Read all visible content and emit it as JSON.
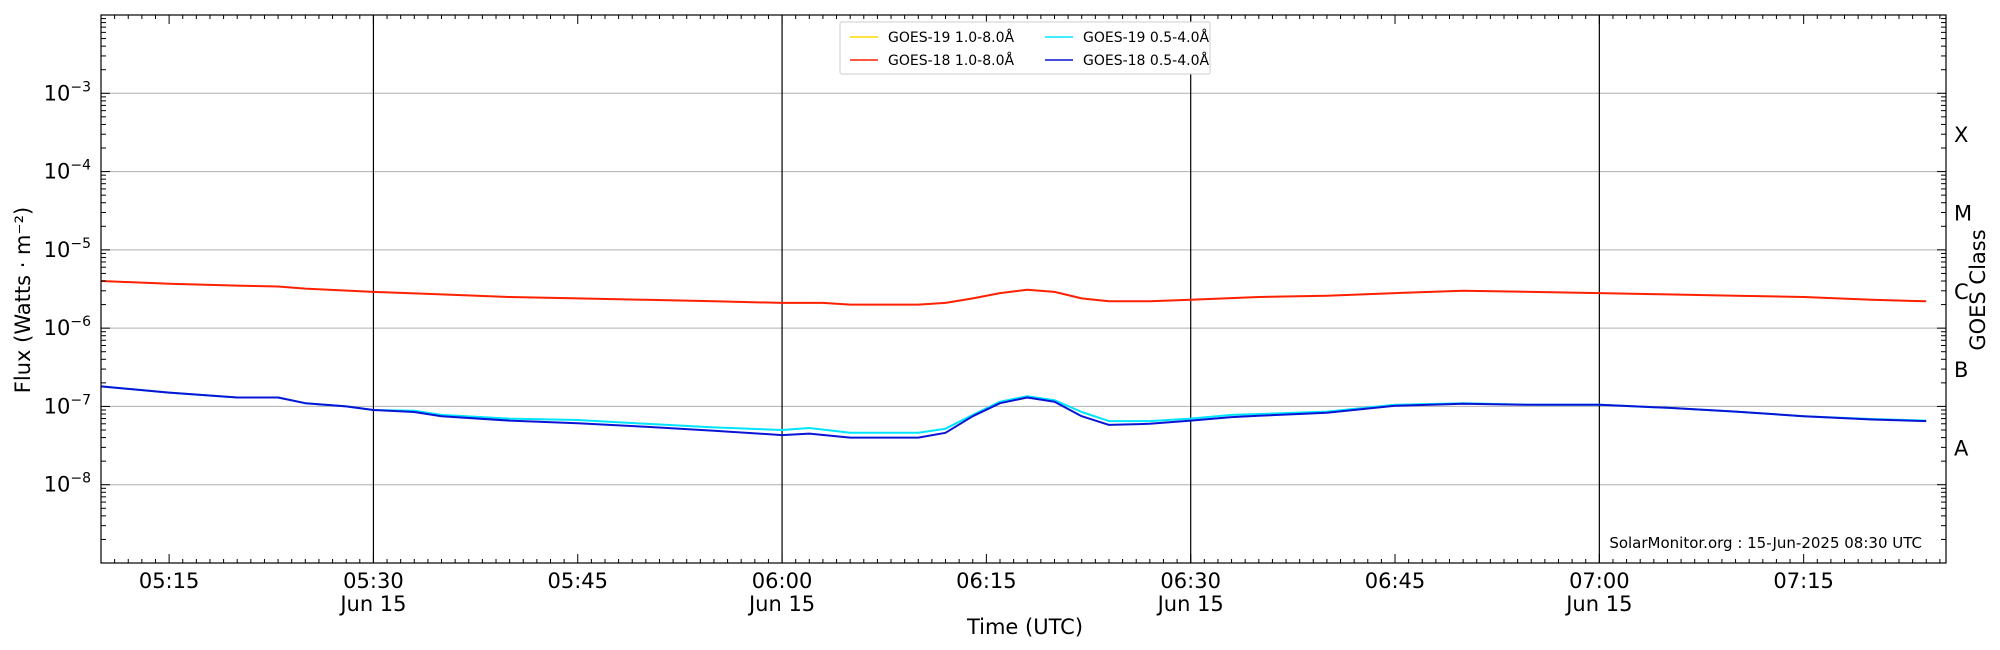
{
  "chart_data": {
    "type": "line",
    "y_scale": "log",
    "ylim": [
      1e-09,
      0.01
    ],
    "xlim": [
      "05:10",
      "07:25"
    ],
    "ylabel": "Flux (Watts · m⁻²)",
    "xlabel": "Time (UTC)",
    "right_label": "GOES Class",
    "y_ticks": [
      {
        "value": 0.001,
        "base": "10",
        "exp": "−3"
      },
      {
        "value": 0.0001,
        "base": "10",
        "exp": "−4"
      },
      {
        "value": 1e-05,
        "base": "10",
        "exp": "−5"
      },
      {
        "value": 1e-06,
        "base": "10",
        "exp": "−6"
      },
      {
        "value": 1e-07,
        "base": "10",
        "exp": "−7"
      },
      {
        "value": 1e-08,
        "base": "10",
        "exp": "−8"
      }
    ],
    "x_ticks": [
      {
        "time": "05:15",
        "label": "05:15",
        "date": ""
      },
      {
        "time": "05:30",
        "label": "05:30",
        "date": "Jun 15"
      },
      {
        "time": "05:45",
        "label": "05:45",
        "date": ""
      },
      {
        "time": "06:00",
        "label": "06:00",
        "date": "Jun 15"
      },
      {
        "time": "06:15",
        "label": "06:15",
        "date": ""
      },
      {
        "time": "06:30",
        "label": "06:30",
        "date": "Jun 15"
      },
      {
        "time": "06:45",
        "label": "06:45",
        "date": ""
      },
      {
        "time": "07:00",
        "label": "07:00",
        "date": "Jun 15"
      },
      {
        "time": "07:15",
        "label": "07:15",
        "date": ""
      }
    ],
    "vertical_lines": [
      "05:30",
      "06:00",
      "06:30",
      "07:00"
    ],
    "class_labels": [
      {
        "label": "X",
        "value": 0.0003
      },
      {
        "label": "M",
        "value": 3e-05
      },
      {
        "label": "C",
        "value": 3e-06
      },
      {
        "label": "B",
        "value": 3e-07
      },
      {
        "label": "A",
        "value": 3e-08
      }
    ],
    "legend": {
      "location": "top-center",
      "columns": 2
    },
    "credit": "SolarMonitor.org : 15-Jun-2025 08:30 UTC",
    "series": [
      {
        "name": "GOES-19 1.0-8.0Å",
        "color": "#FFD700",
        "points": []
      },
      {
        "name": "GOES-18 1.0-8.0Å",
        "color": "#FF2000",
        "points": [
          [
            "05:10",
            4e-06
          ],
          [
            "05:15",
            3.7e-06
          ],
          [
            "05:20",
            3.5e-06
          ],
          [
            "05:23",
            3.4e-06
          ],
          [
            "05:25",
            3.2e-06
          ],
          [
            "05:30",
            2.9e-06
          ],
          [
            "05:35",
            2.7e-06
          ],
          [
            "05:40",
            2.5e-06
          ],
          [
            "05:45",
            2.4e-06
          ],
          [
            "05:50",
            2.3e-06
          ],
          [
            "05:55",
            2.2e-06
          ],
          [
            "06:00",
            2.1e-06
          ],
          [
            "06:03",
            2.1e-06
          ],
          [
            "06:05",
            2e-06
          ],
          [
            "06:10",
            2e-06
          ],
          [
            "06:12",
            2.1e-06
          ],
          [
            "06:14",
            2.4e-06
          ],
          [
            "06:16",
            2.8e-06
          ],
          [
            "06:18",
            3.1e-06
          ],
          [
            "06:20",
            2.9e-06
          ],
          [
            "06:22",
            2.4e-06
          ],
          [
            "06:24",
            2.2e-06
          ],
          [
            "06:27",
            2.2e-06
          ],
          [
            "06:30",
            2.3e-06
          ],
          [
            "06:35",
            2.5e-06
          ],
          [
            "06:40",
            2.6e-06
          ],
          [
            "06:45",
            2.8e-06
          ],
          [
            "06:50",
            3e-06
          ],
          [
            "06:55",
            2.9e-06
          ],
          [
            "07:00",
            2.8e-06
          ],
          [
            "07:05",
            2.7e-06
          ],
          [
            "07:10",
            2.6e-06
          ],
          [
            "07:15",
            2.5e-06
          ],
          [
            "07:20",
            2.3e-06
          ],
          [
            "07:24",
            2.2e-06
          ]
        ]
      },
      {
        "name": "GOES-19 0.5-4.0Å",
        "color": "#00E5FF",
        "points": [
          [
            "05:10",
            1.8e-07
          ],
          [
            "05:15",
            1.5e-07
          ],
          [
            "05:20",
            1.3e-07
          ],
          [
            "05:23",
            1.3e-07
          ],
          [
            "05:25",
            1.1e-07
          ],
          [
            "05:28",
            1e-07
          ],
          [
            "05:30",
            9e-08
          ],
          [
            "05:33",
            8.8e-08
          ],
          [
            "05:35",
            7.8e-08
          ],
          [
            "05:40",
            7e-08
          ],
          [
            "05:45",
            6.7e-08
          ],
          [
            "05:50",
            6e-08
          ],
          [
            "05:55",
            5.4e-08
          ],
          [
            "06:00",
            5e-08
          ],
          [
            "06:02",
            5.3e-08
          ],
          [
            "06:05",
            4.6e-08
          ],
          [
            "06:08",
            4.6e-08
          ],
          [
            "06:10",
            4.6e-08
          ],
          [
            "06:12",
            5.2e-08
          ],
          [
            "06:14",
            7.8e-08
          ],
          [
            "06:16",
            1.15e-07
          ],
          [
            "06:18",
            1.35e-07
          ],
          [
            "06:20",
            1.2e-07
          ],
          [
            "06:22",
            8.5e-08
          ],
          [
            "06:24",
            6.5e-08
          ],
          [
            "06:27",
            6.5e-08
          ],
          [
            "06:30",
            7e-08
          ],
          [
            "06:33",
            7.8e-08
          ],
          [
            "06:35",
            8e-08
          ],
          [
            "06:40",
            8.6e-08
          ],
          [
            "06:45",
            1.05e-07
          ],
          [
            "06:50",
            1.1e-07
          ],
          [
            "06:55",
            1.05e-07
          ],
          [
            "07:00",
            1.05e-07
          ],
          [
            "07:05",
            9.6e-08
          ],
          [
            "07:10",
            8.6e-08
          ],
          [
            "07:15",
            7.5e-08
          ],
          [
            "07:20",
            6.9e-08
          ],
          [
            "07:24",
            6.6e-08
          ]
        ]
      },
      {
        "name": "GOES-18 0.5-4.0Å",
        "color": "#0A14D4",
        "points": [
          [
            "05:10",
            1.8e-07
          ],
          [
            "05:15",
            1.5e-07
          ],
          [
            "05:20",
            1.3e-07
          ],
          [
            "05:23",
            1.3e-07
          ],
          [
            "05:25",
            1.1e-07
          ],
          [
            "05:28",
            1e-07
          ],
          [
            "05:30",
            9e-08
          ],
          [
            "05:33",
            8.5e-08
          ],
          [
            "05:35",
            7.5e-08
          ],
          [
            "05:40",
            6.6e-08
          ],
          [
            "05:45",
            6.1e-08
          ],
          [
            "05:50",
            5.5e-08
          ],
          [
            "05:55",
            4.9e-08
          ],
          [
            "06:00",
            4.3e-08
          ],
          [
            "06:02",
            4.5e-08
          ],
          [
            "06:05",
            4e-08
          ],
          [
            "06:08",
            4e-08
          ],
          [
            "06:10",
            4e-08
          ],
          [
            "06:12",
            4.6e-08
          ],
          [
            "06:14",
            7.5e-08
          ],
          [
            "06:16",
            1.1e-07
          ],
          [
            "06:18",
            1.3e-07
          ],
          [
            "06:20",
            1.15e-07
          ],
          [
            "06:22",
            7.5e-08
          ],
          [
            "06:24",
            5.8e-08
          ],
          [
            "06:27",
            6e-08
          ],
          [
            "06:30",
            6.6e-08
          ],
          [
            "06:33",
            7.3e-08
          ],
          [
            "06:35",
            7.6e-08
          ],
          [
            "06:40",
            8.3e-08
          ],
          [
            "06:45",
            1.02e-07
          ],
          [
            "06:50",
            1.08e-07
          ],
          [
            "06:55",
            1.05e-07
          ],
          [
            "07:00",
            1.05e-07
          ],
          [
            "07:05",
            9.6e-08
          ],
          [
            "07:10",
            8.6e-08
          ],
          [
            "07:15",
            7.5e-08
          ],
          [
            "07:20",
            6.8e-08
          ],
          [
            "07:24",
            6.5e-08
          ]
        ]
      }
    ]
  }
}
